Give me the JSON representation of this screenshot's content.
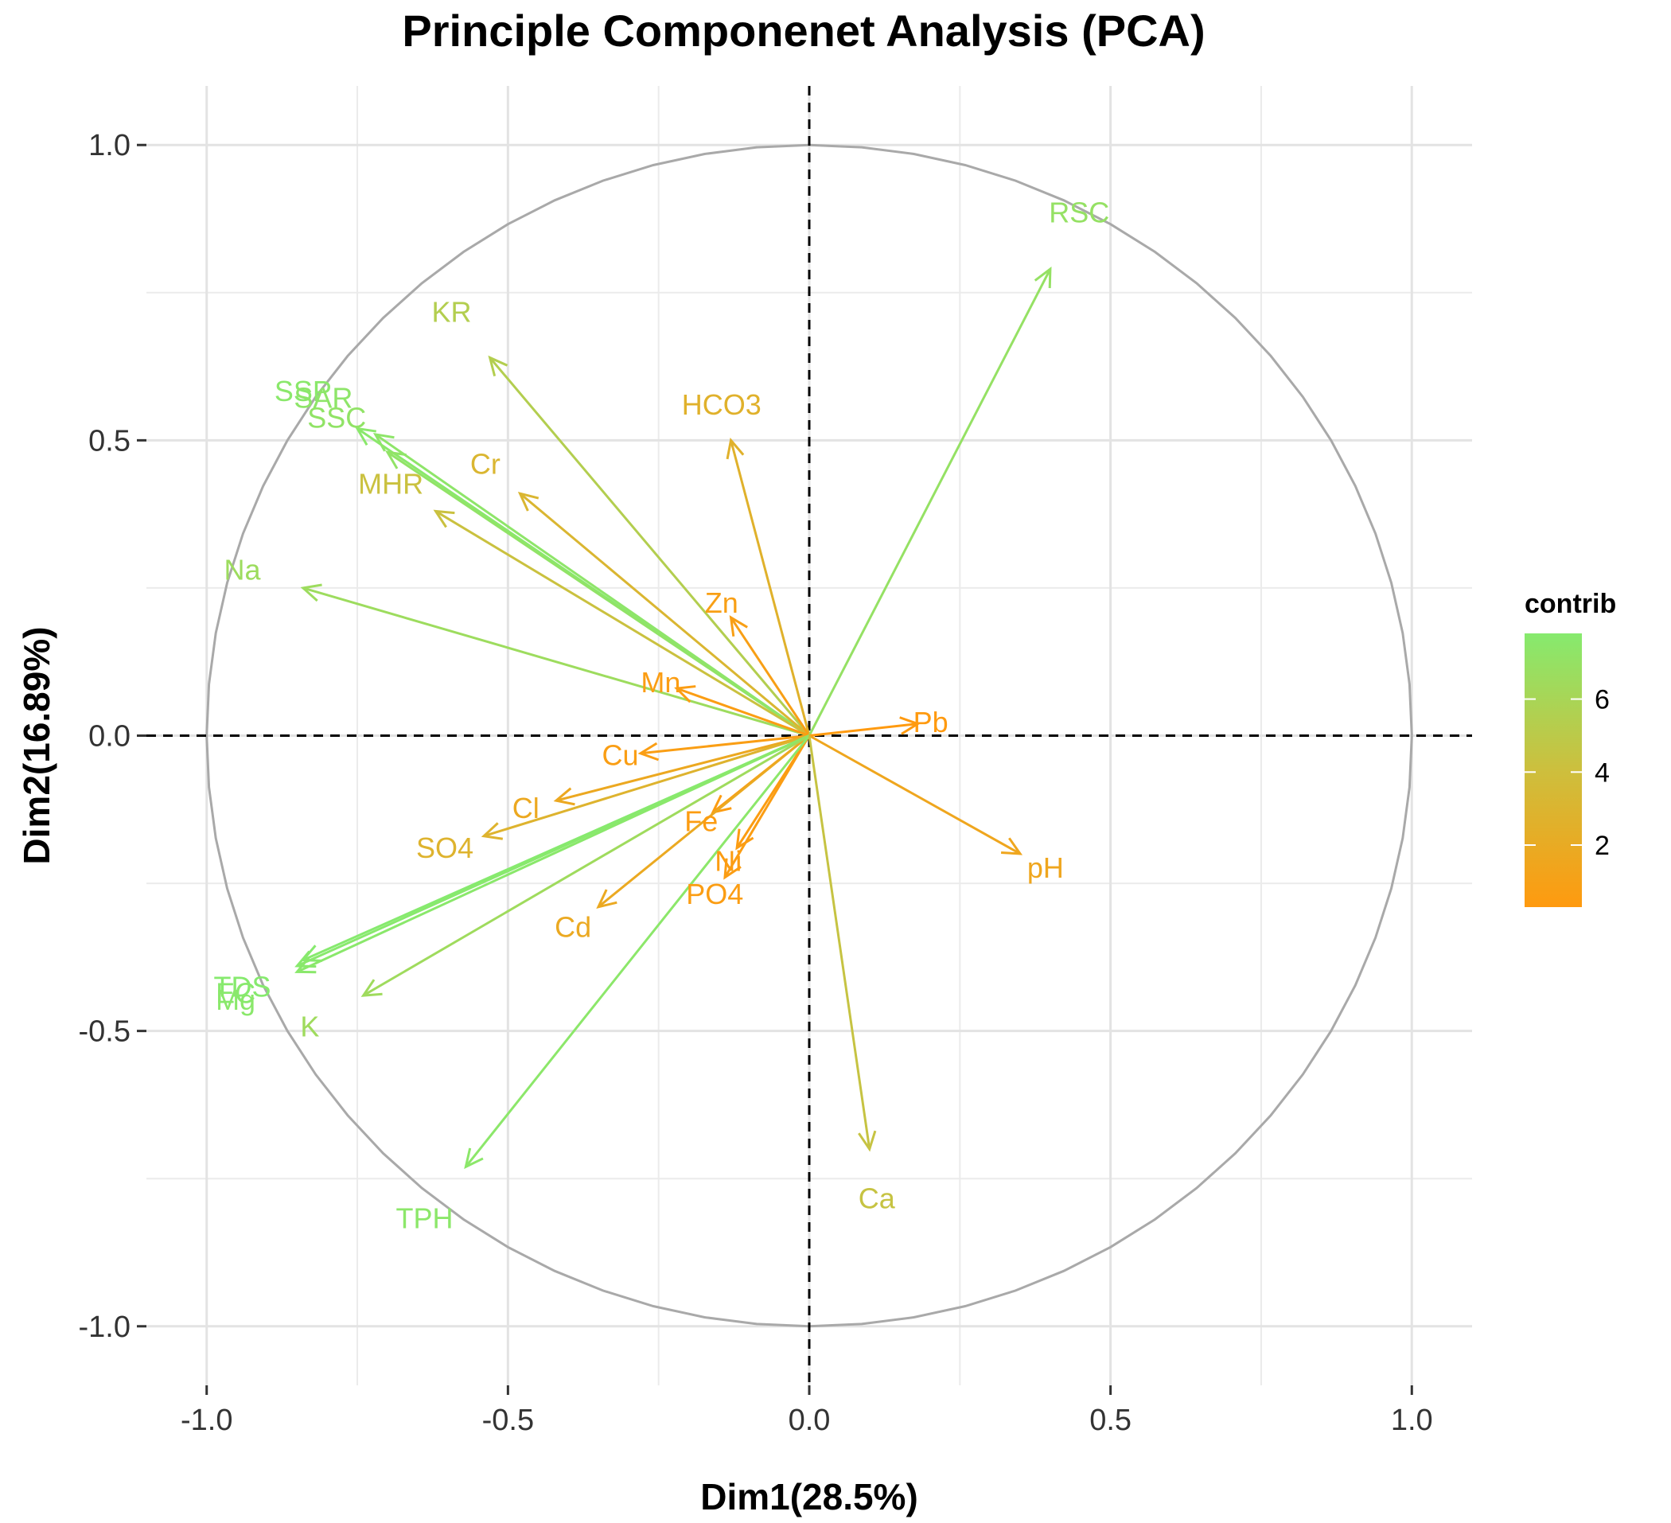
{
  "chart_data": {
    "type": "scatter",
    "subtype": "pca-variable-correlation-circle",
    "title": "Principle Componenet Analysis (PCA)",
    "xlabel": "Dim1(28.5%)",
    "ylabel": "Dim2(16.89%)",
    "xlim": [
      -1.1,
      1.1
    ],
    "ylim": [
      -1.1,
      1.1
    ],
    "x_ticks": [
      -1.0,
      -0.5,
      0.0,
      0.5,
      1.0
    ],
    "y_ticks": [
      -1.0,
      -0.5,
      0.0,
      0.5,
      1.0
    ],
    "x_tick_labels": [
      "-1.0",
      "-0.5",
      "0.0",
      "0.5",
      "1.0"
    ],
    "y_tick_labels": [
      "-1.0",
      "-0.5",
      "0.0",
      "0.5",
      "1.0"
    ],
    "grid": true,
    "unit_circle": true,
    "reference_lines": "dashed at x=0 and y=0",
    "legend": {
      "title": "contrib",
      "placement": "right",
      "range": [
        0.3,
        7.8
      ],
      "ticks": [
        2,
        4,
        6
      ],
      "tick_labels": [
        "2",
        "4",
        "6"
      ],
      "color_low": "#ff9a0f",
      "color_mid": "#cdbf3d",
      "color_high": "#86ea6e"
    },
    "variables": [
      {
        "name": "KR",
        "x": -0.53,
        "y": 0.64,
        "contrib": 5.4
      },
      {
        "name": "SSP",
        "x": -0.75,
        "y": 0.52,
        "contrib": 7.6
      },
      {
        "name": "SSC",
        "x": -0.7,
        "y": 0.48,
        "contrib": 7.2
      },
      {
        "name": "SAR",
        "x": -0.72,
        "y": 0.51,
        "contrib": 7.4
      },
      {
        "name": "MHR",
        "x": -0.62,
        "y": 0.38,
        "contrib": 4.2
      },
      {
        "name": "Cr",
        "x": -0.48,
        "y": 0.41,
        "contrib": 3.1
      },
      {
        "name": "HCO3",
        "x": -0.13,
        "y": 0.5,
        "contrib": 2.6
      },
      {
        "name": "Na",
        "x": -0.84,
        "y": 0.25,
        "contrib": 6.6
      },
      {
        "name": "Zn",
        "x": -0.13,
        "y": 0.2,
        "contrib": 0.8
      },
      {
        "name": "Mn",
        "x": -0.22,
        "y": 0.08,
        "contrib": 0.6
      },
      {
        "name": "RSC",
        "x": 0.4,
        "y": 0.79,
        "contrib": 7.0
      },
      {
        "name": "Pb",
        "x": 0.18,
        "y": 0.02,
        "contrib": 0.3
      },
      {
        "name": "Cu",
        "x": -0.28,
        "y": -0.03,
        "contrib": 0.7
      },
      {
        "name": "Cl",
        "x": -0.42,
        "y": -0.11,
        "contrib": 1.7
      },
      {
        "name": "Fe",
        "x": -0.16,
        "y": -0.13,
        "contrib": 0.5
      },
      {
        "name": "SO4",
        "x": -0.54,
        "y": -0.17,
        "contrib": 2.8
      },
      {
        "name": "Ni",
        "x": -0.12,
        "y": -0.19,
        "contrib": 0.5
      },
      {
        "name": "Cd",
        "x": -0.35,
        "y": -0.29,
        "contrib": 1.8
      },
      {
        "name": "PO4",
        "x": -0.14,
        "y": -0.24,
        "contrib": 0.6
      },
      {
        "name": "pH",
        "x": 0.35,
        "y": -0.2,
        "contrib": 1.5
      },
      {
        "name": "TDS",
        "x": -0.84,
        "y": -0.38,
        "contrib": 7.8
      },
      {
        "name": "EC",
        "x": -0.85,
        "y": -0.39,
        "contrib": 7.7
      },
      {
        "name": "Mg",
        "x": -0.85,
        "y": -0.4,
        "contrib": 7.6
      },
      {
        "name": "K",
        "x": -0.74,
        "y": -0.44,
        "contrib": 6.5
      },
      {
        "name": "TPH",
        "x": -0.57,
        "y": -0.73,
        "contrib": 7.5
      },
      {
        "name": "Ca",
        "x": 0.1,
        "y": -0.7,
        "contrib": 4.4
      }
    ]
  }
}
